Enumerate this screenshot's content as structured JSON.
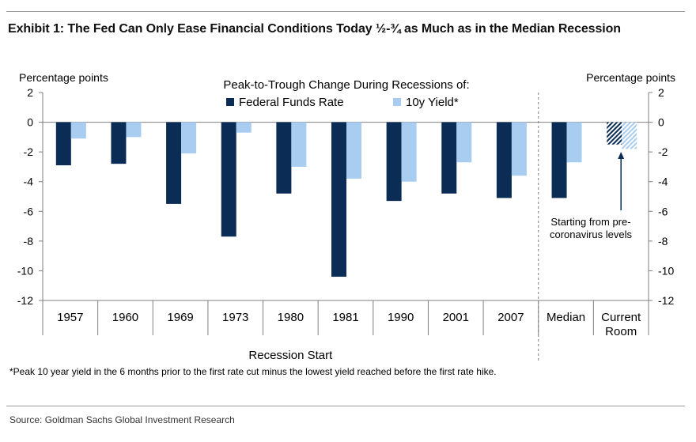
{
  "exhibit_title": "Exhibit 1: The Fed Can Only Ease Financial Conditions Today ½-¾ as Much as in the Median Recession",
  "footnote": "*Peak 10 year yield in the 6 months prior to the first rate cut minus the lowest yield reached before the first rate hike.",
  "source": "Source: Goldman Sachs Global Investment Research",
  "chart_data": {
    "type": "bar",
    "title": "Peak-to-Trough Change During Recessions of:",
    "ylabel_left": "Percentage points",
    "ylabel_right": "Percentage points",
    "xlabel": "Recession Start",
    "ylim": [
      -12,
      2
    ],
    "yticks": [
      2,
      0,
      -2,
      -4,
      -6,
      -8,
      -10,
      -12
    ],
    "categories": [
      "1957",
      "1960",
      "1969",
      "1973",
      "1980",
      "1981",
      "1990",
      "2001",
      "2007",
      "Median",
      "Current Room"
    ],
    "series": [
      {
        "name": "Federal Funds Rate",
        "color": "#0b2d55",
        "values": [
          -2.9,
          -2.8,
          -5.5,
          -7.7,
          -4.8,
          -10.4,
          -5.3,
          -4.8,
          -5.1,
          -5.1,
          -1.5
        ]
      },
      {
        "name": "10y Yield*",
        "color": "#a9cdf0",
        "values": [
          -1.1,
          -1.0,
          -2.1,
          -0.7,
          -3.0,
          -3.8,
          -4.0,
          -2.7,
          -3.6,
          -2.7,
          -1.8
        ]
      }
    ],
    "hatched_category": "Current Room",
    "annotation": {
      "lines": [
        "Starting from pre-",
        "coronavirus levels"
      ]
    }
  }
}
